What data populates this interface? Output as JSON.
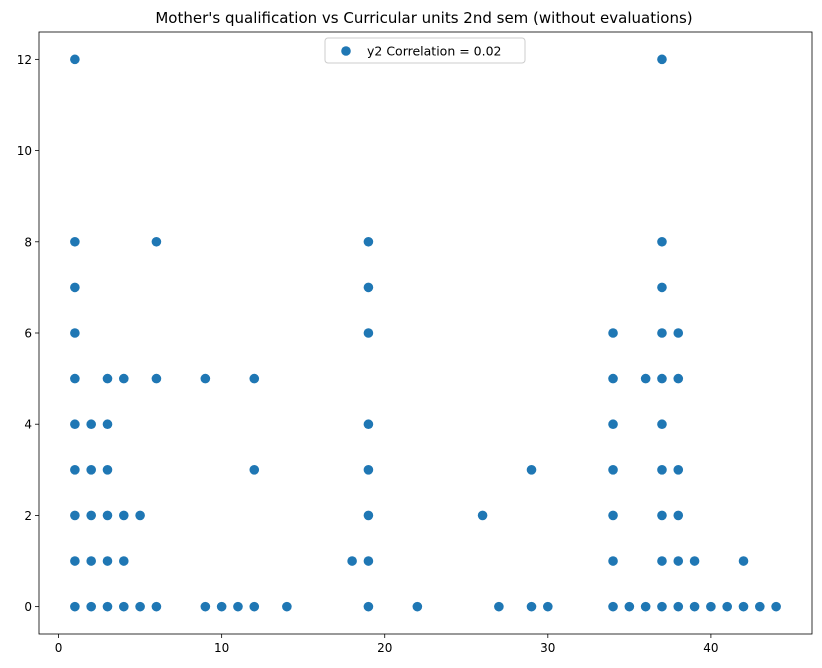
{
  "chart_data": {
    "type": "scatter",
    "title": "Mother's qualification vs Curricular units 2nd sem (without evaluations)",
    "xlabel": "",
    "ylabel": "",
    "xlim": [
      -1.2,
      46.2
    ],
    "ylim": [
      -0.6,
      12.6
    ],
    "x_ticks": [
      0,
      10,
      20,
      30,
      40
    ],
    "y_ticks": [
      0,
      2,
      4,
      6,
      8,
      10,
      12
    ],
    "grid": false,
    "legend_position": "top-center",
    "color": "#1f77b4",
    "series": [
      {
        "name": "y2 Correlation = 0.02",
        "points": [
          [
            1,
            0
          ],
          [
            1,
            1
          ],
          [
            1,
            2
          ],
          [
            1,
            3
          ],
          [
            1,
            4
          ],
          [
            1,
            5
          ],
          [
            1,
            6
          ],
          [
            1,
            7
          ],
          [
            1,
            8
          ],
          [
            1,
            12
          ],
          [
            2,
            0
          ],
          [
            2,
            1
          ],
          [
            2,
            2
          ],
          [
            2,
            3
          ],
          [
            2,
            4
          ],
          [
            3,
            0
          ],
          [
            3,
            1
          ],
          [
            3,
            2
          ],
          [
            3,
            3
          ],
          [
            3,
            4
          ],
          [
            3,
            5
          ],
          [
            4,
            0
          ],
          [
            4,
            1
          ],
          [
            4,
            2
          ],
          [
            4,
            5
          ],
          [
            5,
            0
          ],
          [
            5,
            2
          ],
          [
            6,
            0
          ],
          [
            6,
            5
          ],
          [
            6,
            8
          ],
          [
            9,
            0
          ],
          [
            9,
            5
          ],
          [
            10,
            0
          ],
          [
            11,
            0
          ],
          [
            12,
            0
          ],
          [
            12,
            3
          ],
          [
            12,
            5
          ],
          [
            14,
            0
          ],
          [
            18,
            1
          ],
          [
            19,
            0
          ],
          [
            19,
            1
          ],
          [
            19,
            2
          ],
          [
            19,
            3
          ],
          [
            19,
            4
          ],
          [
            19,
            6
          ],
          [
            19,
            7
          ],
          [
            19,
            8
          ],
          [
            22,
            0
          ],
          [
            26,
            2
          ],
          [
            27,
            0
          ],
          [
            29,
            0
          ],
          [
            29,
            3
          ],
          [
            30,
            0
          ],
          [
            34,
            0
          ],
          [
            34,
            1
          ],
          [
            34,
            2
          ],
          [
            34,
            3
          ],
          [
            34,
            4
          ],
          [
            34,
            5
          ],
          [
            34,
            6
          ],
          [
            35,
            0
          ],
          [
            36,
            0
          ],
          [
            36,
            5
          ],
          [
            37,
            0
          ],
          [
            37,
            1
          ],
          [
            37,
            2
          ],
          [
            37,
            3
          ],
          [
            37,
            4
          ],
          [
            37,
            5
          ],
          [
            37,
            6
          ],
          [
            37,
            7
          ],
          [
            37,
            8
          ],
          [
            37,
            12
          ],
          [
            38,
            0
          ],
          [
            38,
            1
          ],
          [
            38,
            2
          ],
          [
            38,
            3
          ],
          [
            38,
            5
          ],
          [
            38,
            6
          ],
          [
            39,
            0
          ],
          [
            39,
            1
          ],
          [
            40,
            0
          ],
          [
            41,
            0
          ],
          [
            42,
            0
          ],
          [
            42,
            1
          ],
          [
            43,
            0
          ],
          [
            44,
            0
          ]
        ]
      }
    ]
  }
}
